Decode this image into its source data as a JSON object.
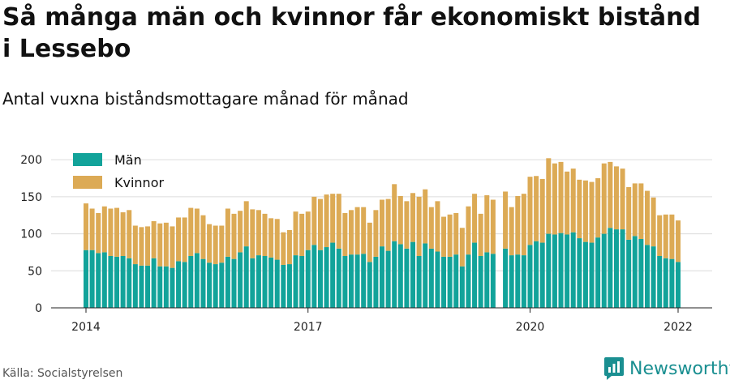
{
  "title": "Så många män och kvinnor får ekonomiskt bistånd i Lessebo",
  "subtitle": "Antal vuxna biståndsmottagare månad för månad",
  "source": "Källa: Socialstyrelsen",
  "brand": {
    "name": "Newsworthy",
    "icon": "newsworthy-logo-icon"
  },
  "colors": {
    "men": "#12a39a",
    "women": "#dcaa55",
    "grid": "#dcdcdc",
    "axis": "#222222"
  },
  "chart_data": {
    "type": "bar",
    "stacked": true,
    "xlabel": "",
    "ylabel": "",
    "ylim": [
      0,
      210
    ],
    "yticks": [
      0,
      50,
      100,
      150,
      200
    ],
    "xticks": [
      "2014",
      "2017",
      "2020",
      "2022"
    ],
    "grid": true,
    "legend_position": "top-left",
    "start_month": "2014-01",
    "series": [
      {
        "name": "Män",
        "values": [
          78,
          78,
          74,
          75,
          70,
          69,
          70,
          67,
          59,
          57,
          57,
          67,
          56,
          56,
          54,
          63,
          62,
          70,
          74,
          66,
          61,
          59,
          61,
          69,
          66,
          75,
          83,
          67,
          71,
          70,
          68,
          65,
          58,
          59,
          71,
          70,
          78,
          85,
          78,
          82,
          88,
          80,
          70,
          72,
          72,
          73,
          62,
          69,
          83,
          77,
          90,
          86,
          80,
          89,
          70,
          87,
          80,
          76,
          69,
          69,
          72,
          56,
          72,
          88,
          70,
          75,
          73,
          null,
          80,
          71,
          72,
          71,
          85,
          90,
          88,
          100,
          99,
          101,
          99,
          102,
          94,
          89,
          88,
          95,
          100,
          108,
          106,
          106,
          92,
          97,
          93,
          85,
          83,
          70,
          67,
          66,
          62
        ]
      },
      {
        "name": "Kvinnor",
        "values": [
          63,
          56,
          54,
          62,
          64,
          66,
          59,
          65,
          52,
          52,
          53,
          50,
          58,
          59,
          56,
          59,
          60,
          65,
          60,
          59,
          52,
          52,
          50,
          65,
          61,
          56,
          61,
          66,
          61,
          57,
          53,
          55,
          44,
          46,
          59,
          57,
          52,
          65,
          69,
          71,
          66,
          74,
          58,
          60,
          64,
          63,
          53,
          63,
          63,
          70,
          77,
          65,
          64,
          66,
          80,
          73,
          56,
          68,
          54,
          57,
          56,
          52,
          65,
          66,
          57,
          77,
          73,
          null,
          77,
          65,
          79,
          83,
          92,
          88,
          86,
          102,
          96,
          96,
          85,
          86,
          79,
          83,
          82,
          80,
          95,
          89,
          85,
          82,
          71,
          71,
          75,
          73,
          66,
          55,
          59,
          60,
          56
        ]
      }
    ]
  }
}
